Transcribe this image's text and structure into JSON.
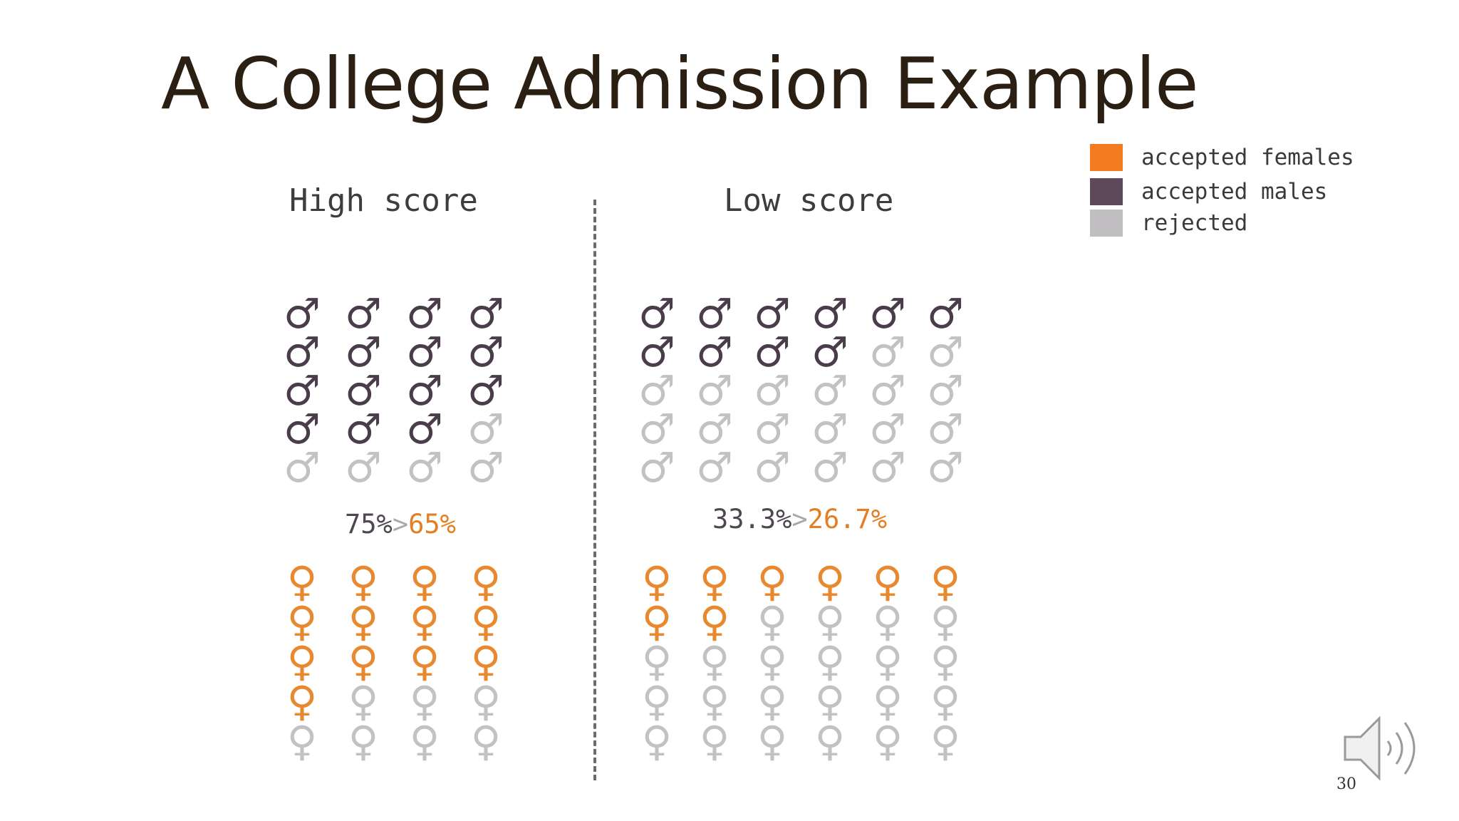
{
  "title": "A College Admission Example",
  "legend": [
    {
      "label": "accepted females",
      "color": "#f47b20"
    },
    {
      "label": "accepted males",
      "color": "#5c4a5c"
    },
    {
      "label": "rejected",
      "color": "#c0bec0"
    }
  ],
  "symbols": {
    "male": "♂",
    "female": "♀"
  },
  "colors": {
    "accepted_male": "#4a3c4a",
    "accepted_female": "#e8892f",
    "rejected": "#c2c2c2"
  },
  "groups": {
    "high": {
      "heading": "High score",
      "male_pct": "75%",
      "gt": ">",
      "female_pct": "65%",
      "columns": 4,
      "rows": 5,
      "males_accepted": 15,
      "females_accepted": 13
    },
    "low": {
      "heading": "Low score",
      "male_pct": "33.3%",
      "gt": ">",
      "female_pct": "26.7%",
      "columns": 6,
      "rows": 5,
      "males_accepted": 10,
      "females_accepted": 8
    }
  },
  "page_number": "30"
}
